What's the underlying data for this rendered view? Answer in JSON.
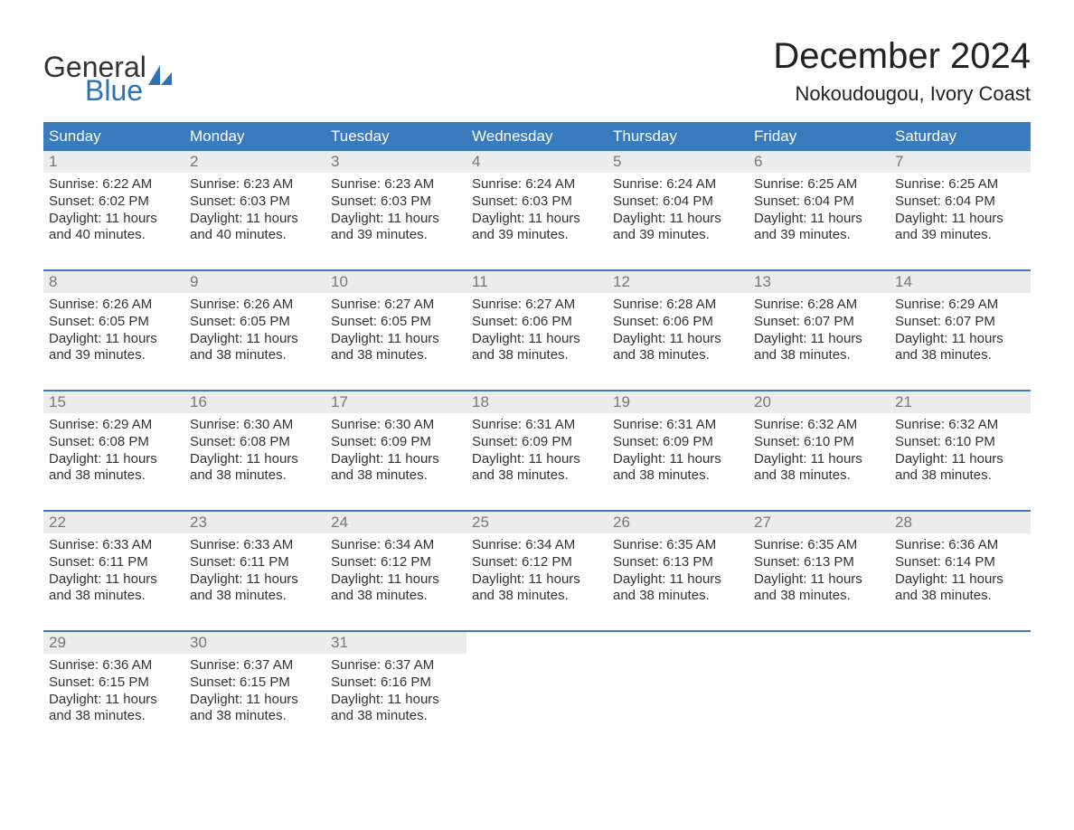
{
  "brand": {
    "word1": "General",
    "word2": "Blue",
    "word1_color": "#333333",
    "word2_color": "#2a73b8",
    "icon_color": "#2a73b8"
  },
  "title": "December 2024",
  "location": "Nokoudougou, Ivory Coast",
  "colors": {
    "header_bg": "#397bbd",
    "header_text": "#ffffff",
    "day_number_bg": "#ececec",
    "day_number_color": "#777777",
    "body_text": "#333333",
    "week_border": "#397bbd",
    "page_bg": "#ffffff"
  },
  "fonts": {
    "title_size_pt": 30,
    "location_size_pt": 16,
    "weekday_size_pt": 13,
    "body_size_pt": 11
  },
  "weekdays": [
    "Sunday",
    "Monday",
    "Tuesday",
    "Wednesday",
    "Thursday",
    "Friday",
    "Saturday"
  ],
  "weeks": [
    [
      {
        "n": "1",
        "sunrise": "Sunrise: 6:22 AM",
        "sunset": "Sunset: 6:02 PM",
        "day1": "Daylight: 11 hours",
        "day2": "and 40 minutes."
      },
      {
        "n": "2",
        "sunrise": "Sunrise: 6:23 AM",
        "sunset": "Sunset: 6:03 PM",
        "day1": "Daylight: 11 hours",
        "day2": "and 40 minutes."
      },
      {
        "n": "3",
        "sunrise": "Sunrise: 6:23 AM",
        "sunset": "Sunset: 6:03 PM",
        "day1": "Daylight: 11 hours",
        "day2": "and 39 minutes."
      },
      {
        "n": "4",
        "sunrise": "Sunrise: 6:24 AM",
        "sunset": "Sunset: 6:03 PM",
        "day1": "Daylight: 11 hours",
        "day2": "and 39 minutes."
      },
      {
        "n": "5",
        "sunrise": "Sunrise: 6:24 AM",
        "sunset": "Sunset: 6:04 PM",
        "day1": "Daylight: 11 hours",
        "day2": "and 39 minutes."
      },
      {
        "n": "6",
        "sunrise": "Sunrise: 6:25 AM",
        "sunset": "Sunset: 6:04 PM",
        "day1": "Daylight: 11 hours",
        "day2": "and 39 minutes."
      },
      {
        "n": "7",
        "sunrise": "Sunrise: 6:25 AM",
        "sunset": "Sunset: 6:04 PM",
        "day1": "Daylight: 11 hours",
        "day2": "and 39 minutes."
      }
    ],
    [
      {
        "n": "8",
        "sunrise": "Sunrise: 6:26 AM",
        "sunset": "Sunset: 6:05 PM",
        "day1": "Daylight: 11 hours",
        "day2": "and 39 minutes."
      },
      {
        "n": "9",
        "sunrise": "Sunrise: 6:26 AM",
        "sunset": "Sunset: 6:05 PM",
        "day1": "Daylight: 11 hours",
        "day2": "and 38 minutes."
      },
      {
        "n": "10",
        "sunrise": "Sunrise: 6:27 AM",
        "sunset": "Sunset: 6:05 PM",
        "day1": "Daylight: 11 hours",
        "day2": "and 38 minutes."
      },
      {
        "n": "11",
        "sunrise": "Sunrise: 6:27 AM",
        "sunset": "Sunset: 6:06 PM",
        "day1": "Daylight: 11 hours",
        "day2": "and 38 minutes."
      },
      {
        "n": "12",
        "sunrise": "Sunrise: 6:28 AM",
        "sunset": "Sunset: 6:06 PM",
        "day1": "Daylight: 11 hours",
        "day2": "and 38 minutes."
      },
      {
        "n": "13",
        "sunrise": "Sunrise: 6:28 AM",
        "sunset": "Sunset: 6:07 PM",
        "day1": "Daylight: 11 hours",
        "day2": "and 38 minutes."
      },
      {
        "n": "14",
        "sunrise": "Sunrise: 6:29 AM",
        "sunset": "Sunset: 6:07 PM",
        "day1": "Daylight: 11 hours",
        "day2": "and 38 minutes."
      }
    ],
    [
      {
        "n": "15",
        "sunrise": "Sunrise: 6:29 AM",
        "sunset": "Sunset: 6:08 PM",
        "day1": "Daylight: 11 hours",
        "day2": "and 38 minutes."
      },
      {
        "n": "16",
        "sunrise": "Sunrise: 6:30 AM",
        "sunset": "Sunset: 6:08 PM",
        "day1": "Daylight: 11 hours",
        "day2": "and 38 minutes."
      },
      {
        "n": "17",
        "sunrise": "Sunrise: 6:30 AM",
        "sunset": "Sunset: 6:09 PM",
        "day1": "Daylight: 11 hours",
        "day2": "and 38 minutes."
      },
      {
        "n": "18",
        "sunrise": "Sunrise: 6:31 AM",
        "sunset": "Sunset: 6:09 PM",
        "day1": "Daylight: 11 hours",
        "day2": "and 38 minutes."
      },
      {
        "n": "19",
        "sunrise": "Sunrise: 6:31 AM",
        "sunset": "Sunset: 6:09 PM",
        "day1": "Daylight: 11 hours",
        "day2": "and 38 minutes."
      },
      {
        "n": "20",
        "sunrise": "Sunrise: 6:32 AM",
        "sunset": "Sunset: 6:10 PM",
        "day1": "Daylight: 11 hours",
        "day2": "and 38 minutes."
      },
      {
        "n": "21",
        "sunrise": "Sunrise: 6:32 AM",
        "sunset": "Sunset: 6:10 PM",
        "day1": "Daylight: 11 hours",
        "day2": "and 38 minutes."
      }
    ],
    [
      {
        "n": "22",
        "sunrise": "Sunrise: 6:33 AM",
        "sunset": "Sunset: 6:11 PM",
        "day1": "Daylight: 11 hours",
        "day2": "and 38 minutes."
      },
      {
        "n": "23",
        "sunrise": "Sunrise: 6:33 AM",
        "sunset": "Sunset: 6:11 PM",
        "day1": "Daylight: 11 hours",
        "day2": "and 38 minutes."
      },
      {
        "n": "24",
        "sunrise": "Sunrise: 6:34 AM",
        "sunset": "Sunset: 6:12 PM",
        "day1": "Daylight: 11 hours",
        "day2": "and 38 minutes."
      },
      {
        "n": "25",
        "sunrise": "Sunrise: 6:34 AM",
        "sunset": "Sunset: 6:12 PM",
        "day1": "Daylight: 11 hours",
        "day2": "and 38 minutes."
      },
      {
        "n": "26",
        "sunrise": "Sunrise: 6:35 AM",
        "sunset": "Sunset: 6:13 PM",
        "day1": "Daylight: 11 hours",
        "day2": "and 38 minutes."
      },
      {
        "n": "27",
        "sunrise": "Sunrise: 6:35 AM",
        "sunset": "Sunset: 6:13 PM",
        "day1": "Daylight: 11 hours",
        "day2": "and 38 minutes."
      },
      {
        "n": "28",
        "sunrise": "Sunrise: 6:36 AM",
        "sunset": "Sunset: 6:14 PM",
        "day1": "Daylight: 11 hours",
        "day2": "and 38 minutes."
      }
    ],
    [
      {
        "n": "29",
        "sunrise": "Sunrise: 6:36 AM",
        "sunset": "Sunset: 6:15 PM",
        "day1": "Daylight: 11 hours",
        "day2": "and 38 minutes."
      },
      {
        "n": "30",
        "sunrise": "Sunrise: 6:37 AM",
        "sunset": "Sunset: 6:15 PM",
        "day1": "Daylight: 11 hours",
        "day2": "and 38 minutes."
      },
      {
        "n": "31",
        "sunrise": "Sunrise: 6:37 AM",
        "sunset": "Sunset: 6:16 PM",
        "day1": "Daylight: 11 hours",
        "day2": "and 38 minutes."
      },
      null,
      null,
      null,
      null
    ]
  ]
}
